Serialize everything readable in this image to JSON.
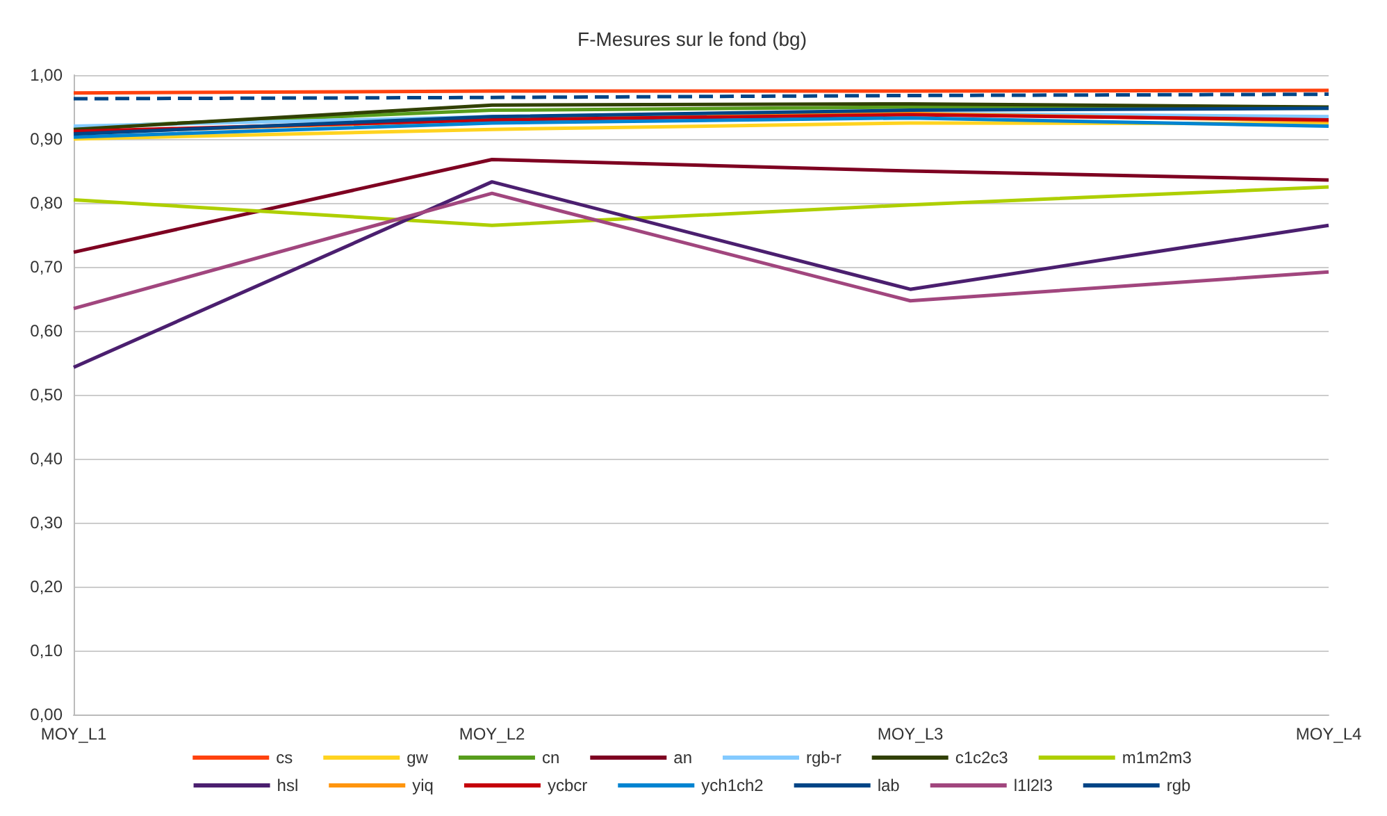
{
  "chart_data": {
    "type": "line",
    "title": "F-Mesures sur le fond (bg)",
    "categories": [
      "MOY_L1",
      "MOY_L2",
      "MOY_L3",
      "MOY_L4"
    ],
    "ylim": [
      0,
      1
    ],
    "yticks": [
      {
        "value": 0,
        "label": "0,00"
      },
      {
        "value": 0.1,
        "label": "0,10"
      },
      {
        "value": 0.2,
        "label": "0,20"
      },
      {
        "value": 0.3,
        "label": "0,30"
      },
      {
        "value": 0.4,
        "label": "0,40"
      },
      {
        "value": 0.5,
        "label": "0,50"
      },
      {
        "value": 0.6,
        "label": "0,60"
      },
      {
        "value": 0.7,
        "label": "0,70"
      },
      {
        "value": 0.8,
        "label": "0,80"
      },
      {
        "value": 0.9,
        "label": "0,90"
      },
      {
        "value": 1,
        "label": "1,00"
      }
    ],
    "grid": "y",
    "legend": "bottom",
    "marker": "none",
    "line_style": "solid",
    "series": [
      {
        "name": "cs",
        "color": "#ff420e",
        "values": [
          0.972,
          0.975,
          0.975,
          0.976
        ]
      },
      {
        "name": "gw",
        "color": "#ffd320",
        "values": [
          0.9,
          0.915,
          0.925,
          0.924
        ]
      },
      {
        "name": "cn",
        "color": "#579d1c",
        "values": [
          0.918,
          0.945,
          0.95,
          0.948
        ]
      },
      {
        "name": "an",
        "color": "#7e0021",
        "values": [
          0.723,
          0.868,
          0.85,
          0.836
        ]
      },
      {
        "name": "rgb-r",
        "color": "#83caff",
        "values": [
          0.92,
          0.935,
          0.94,
          0.935
        ]
      },
      {
        "name": "c1c2c3",
        "color": "#314004",
        "values": [
          0.915,
          0.953,
          0.955,
          0.95
        ]
      },
      {
        "name": "m1m2m3",
        "color": "#aecf00",
        "values": [
          0.805,
          0.765,
          0.797,
          0.825
        ]
      },
      {
        "name": "hsl",
        "color": "#4b1f6f",
        "values": [
          0.543,
          0.833,
          0.665,
          0.765
        ]
      },
      {
        "name": "yiq",
        "color": "#ff950e",
        "values": [
          0.91,
          0.93,
          0.94,
          0.928
        ]
      },
      {
        "name": "ycbcr",
        "color": "#c5000b",
        "values": [
          0.912,
          0.93,
          0.938,
          0.93
        ]
      },
      {
        "name": "ych1ch2",
        "color": "#0084d1",
        "values": [
          0.903,
          0.925,
          0.933,
          0.92
        ]
      },
      {
        "name": "lab",
        "color": "#004586",
        "values": [
          0.908,
          0.935,
          0.945,
          0.948
        ]
      },
      {
        "name": "l1l2l3",
        "color": "#a1467e",
        "values": [
          0.635,
          0.815,
          0.647,
          0.692
        ]
      },
      {
        "name": "rgb",
        "color": "#004586",
        "line_style": "dashed",
        "values": [
          0.963,
          0.965,
          0.968,
          0.97
        ]
      }
    ]
  }
}
